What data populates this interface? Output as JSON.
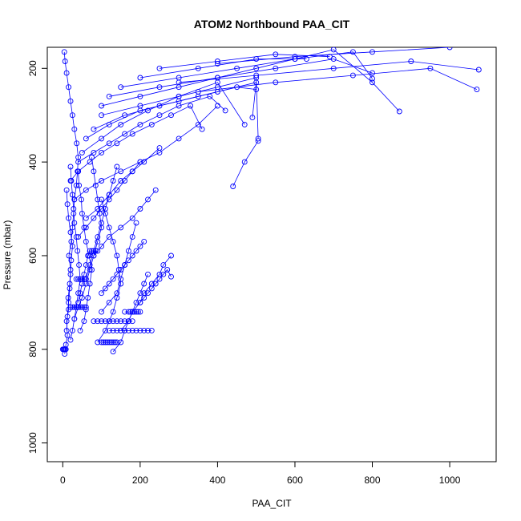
{
  "chart_data": {
    "type": "line",
    "title": "ATOM2 Northbound PAA_CIT",
    "xlabel": "PAA_CIT",
    "ylabel": "Pressure (mbar)",
    "xlim": [
      -40,
      1120
    ],
    "ylim": [
      1040,
      155
    ],
    "y_reversed": true,
    "grid": false,
    "legend": "none",
    "marker": "open-circle",
    "color": "#0000ff",
    "xticks": [
      0,
      200,
      400,
      600,
      800,
      1000
    ],
    "yticks": [
      200,
      400,
      600,
      800,
      1000
    ],
    "series": [
      {
        "x": [
          5,
          8,
          12,
          10,
          15,
          14,
          18,
          20,
          16,
          22,
          25,
          28,
          30,
          35,
          38,
          40,
          36,
          30,
          25,
          20,
          15,
          10,
          6,
          4
        ],
        "y": [
          810,
          790,
          770,
          740,
          715,
          690,
          660,
          630,
          600,
          570,
          540,
          510,
          480,
          450,
          420,
          390,
          360,
          330,
          300,
          270,
          240,
          210,
          185,
          165
        ]
      },
      {
        "x": [
          20,
          25,
          30,
          35,
          40,
          45,
          42,
          38,
          35,
          30,
          28,
          25,
          22,
          20
        ],
        "y": [
          780,
          760,
          735,
          710,
          680,
          650,
          620,
          590,
          560,
          530,
          500,
          470,
          440,
          410
        ]
      },
      {
        "x": [
          45,
          55,
          60,
          65,
          70,
          75,
          68,
          60,
          55,
          50,
          48,
          42,
          40
        ],
        "y": [
          760,
          740,
          715,
          690,
          660,
          630,
          600,
          570,
          540,
          510,
          480,
          450,
          420
        ]
      },
      {
        "x": [
          30,
          40,
          50,
          60,
          70,
          80,
          90,
          100,
          95,
          90,
          85,
          80,
          75
        ],
        "y": [
          735,
          710,
          690,
          660,
          630,
          600,
          570,
          540,
          510,
          480,
          450,
          420,
          390
        ]
      },
      {
        "x": [
          90,
          110,
          120,
          130,
          140,
          150,
          145,
          140,
          130,
          120,
          110,
          100
        ],
        "y": [
          785,
          760,
          740,
          720,
          690,
          660,
          630,
          600,
          570,
          540,
          510,
          480
        ]
      },
      {
        "x": [
          130,
          150,
          160,
          170,
          180,
          190,
          200,
          210,
          220
        ],
        "y": [
          805,
          785,
          760,
          740,
          720,
          700,
          680,
          660,
          640
        ]
      },
      {
        "x": [
          150,
          170,
          180,
          200,
          210,
          230,
          250,
          260,
          280
        ],
        "y": [
          760,
          740,
          720,
          700,
          680,
          660,
          640,
          620,
          600
        ]
      },
      {
        "x": [
          100,
          120,
          140,
          150,
          160,
          170,
          180,
          190
        ],
        "y": [
          720,
          700,
          680,
          650,
          620,
          590,
          560,
          530
        ]
      },
      {
        "x": [
          60,
          70,
          80,
          90,
          100,
          110,
          120,
          130,
          140
        ],
        "y": [
          650,
          620,
          590,
          560,
          530,
          500,
          470,
          440,
          410
        ]
      },
      {
        "x": [
          80,
          100,
          120,
          150,
          180,
          200,
          220,
          240
        ],
        "y": [
          600,
          580,
          560,
          540,
          520,
          500,
          480,
          460
        ]
      },
      {
        "x": [
          40,
          60,
          80,
          100,
          120,
          140,
          160,
          180,
          200
        ],
        "y": [
          560,
          540,
          520,
          500,
          480,
          460,
          440,
          420,
          400
        ]
      },
      {
        "x": [
          60,
          90,
          120,
          150,
          180,
          210,
          250
        ],
        "y": [
          520,
          500,
          470,
          440,
          420,
          400,
          370
        ]
      },
      {
        "x": [
          30,
          60,
          100,
          150,
          200,
          250,
          300,
          350,
          400
        ],
        "y": [
          480,
          460,
          440,
          420,
          400,
          380,
          350,
          320,
          280
        ]
      },
      {
        "x": [
          20,
          40,
          70,
          100,
          140,
          180,
          230,
          280,
          330,
          360
        ],
        "y": [
          440,
          420,
          400,
          380,
          360,
          340,
          320,
          300,
          280,
          330
        ]
      },
      {
        "x": [
          40,
          80,
          120,
          160,
          200,
          250,
          300,
          380,
          420
        ],
        "y": [
          400,
          380,
          360,
          340,
          320,
          300,
          280,
          260,
          290
        ]
      },
      {
        "x": [
          50,
          100,
          150,
          220,
          300,
          400,
          470
        ],
        "y": [
          380,
          350,
          320,
          290,
          260,
          230,
          320
        ]
      },
      {
        "x": [
          60,
          120,
          200,
          300,
          400,
          500,
          490
        ],
        "y": [
          350,
          320,
          290,
          270,
          250,
          230,
          305
        ]
      },
      {
        "x": [
          80,
          160,
          250,
          350,
          450,
          500
        ],
        "y": [
          330,
          300,
          280,
          260,
          240,
          245
        ]
      },
      {
        "x": [
          100,
          200,
          300,
          400,
          500,
          505
        ],
        "y": [
          300,
          280,
          260,
          240,
          220,
          350
        ]
      },
      {
        "x": [
          440,
          470,
          505
        ],
        "y": [
          452,
          400,
          355
        ]
      },
      {
        "x": [
          100,
          200,
          300,
          400,
          500,
          600,
          700,
          800,
          870
        ],
        "y": [
          280,
          260,
          240,
          220,
          200,
          180,
          160,
          230,
          292
        ]
      },
      {
        "x": [
          120,
          250,
          400,
          550,
          700,
          800
        ],
        "y": [
          260,
          240,
          220,
          200,
          180,
          210
        ]
      },
      {
        "x": [
          150,
          300,
          450,
          600,
          750,
          800
        ],
        "y": [
          240,
          220,
          200,
          180,
          165,
          222
        ]
      },
      {
        "x": [
          200,
          350,
          500,
          630
        ],
        "y": [
          220,
          200,
          180,
          180
        ]
      },
      {
        "x": [
          250,
          400,
          550,
          690
        ],
        "y": [
          200,
          185,
          170,
          175
        ]
      },
      {
        "x": [
          300,
          500,
          700,
          900,
          1075
        ],
        "y": [
          230,
          215,
          200,
          185,
          203
        ]
      },
      {
        "x": [
          350,
          550,
          750,
          950,
          1070
        ],
        "y": [
          250,
          230,
          215,
          200,
          245
        ]
      },
      {
        "x": [
          400,
          600,
          800,
          1000
        ],
        "y": [
          190,
          175,
          165,
          155
        ]
      },
      {
        "x": [
          10,
          12,
          15,
          18,
          20,
          22,
          25,
          20,
          15,
          12,
          10
        ],
        "y": [
          760,
          730,
          700,
          670,
          640,
          610,
          580,
          550,
          520,
          490,
          460
        ]
      },
      {
        "x": [
          40,
          45,
          50,
          55,
          60,
          65,
          70,
          75,
          80,
          85,
          90
        ],
        "y": [
          700,
          680,
          660,
          640,
          620,
          600,
          590,
          590,
          590,
          590,
          590
        ]
      },
      {
        "x": [
          35,
          40,
          45,
          50,
          55,
          60
        ],
        "y": [
          650,
          650,
          650,
          650,
          650,
          650
        ]
      },
      {
        "x": [
          120,
          130,
          140,
          150,
          160,
          170,
          180,
          190,
          200,
          210,
          220,
          230
        ],
        "y": [
          760,
          760,
          760,
          760,
          760,
          760,
          760,
          760,
          760,
          760,
          760,
          760
        ]
      },
      {
        "x": [
          80,
          90,
          100,
          110,
          120,
          130,
          140,
          150,
          160,
          170,
          180
        ],
        "y": [
          740,
          740,
          740,
          740,
          740,
          740,
          740,
          740,
          740,
          740,
          740
        ]
      },
      {
        "x": [
          20,
          25,
          30,
          35,
          40,
          45,
          50,
          55,
          60
        ],
        "y": [
          710,
          710,
          710,
          710,
          710,
          710,
          710,
          710,
          710
        ]
      },
      {
        "x": [
          100,
          105,
          110,
          115,
          120,
          125,
          130,
          135,
          140
        ],
        "y": [
          785,
          785,
          785,
          785,
          785,
          785,
          785,
          785,
          785
        ]
      },
      {
        "x": [
          160,
          170,
          175,
          180,
          185,
          190,
          195,
          200
        ],
        "y": [
          720,
          720,
          720,
          720,
          720,
          720,
          720,
          720
        ]
      },
      {
        "x": [
          0,
          2,
          4,
          6,
          8
        ],
        "y": [
          800,
          800,
          800,
          800,
          800
        ]
      },
      {
        "x": [
          200,
          210,
          220,
          230,
          240,
          250,
          260,
          270,
          280
        ],
        "y": [
          700,
          690,
          680,
          670,
          660,
          650,
          640,
          630,
          645
        ]
      },
      {
        "x": [
          160,
          170,
          180,
          190,
          200,
          210
        ],
        "y": [
          620,
          610,
          600,
          590,
          580,
          570
        ]
      },
      {
        "x": [
          100,
          110,
          120,
          130,
          140,
          150,
          160
        ],
        "y": [
          680,
          670,
          660,
          650,
          640,
          630,
          620
        ]
      }
    ]
  }
}
